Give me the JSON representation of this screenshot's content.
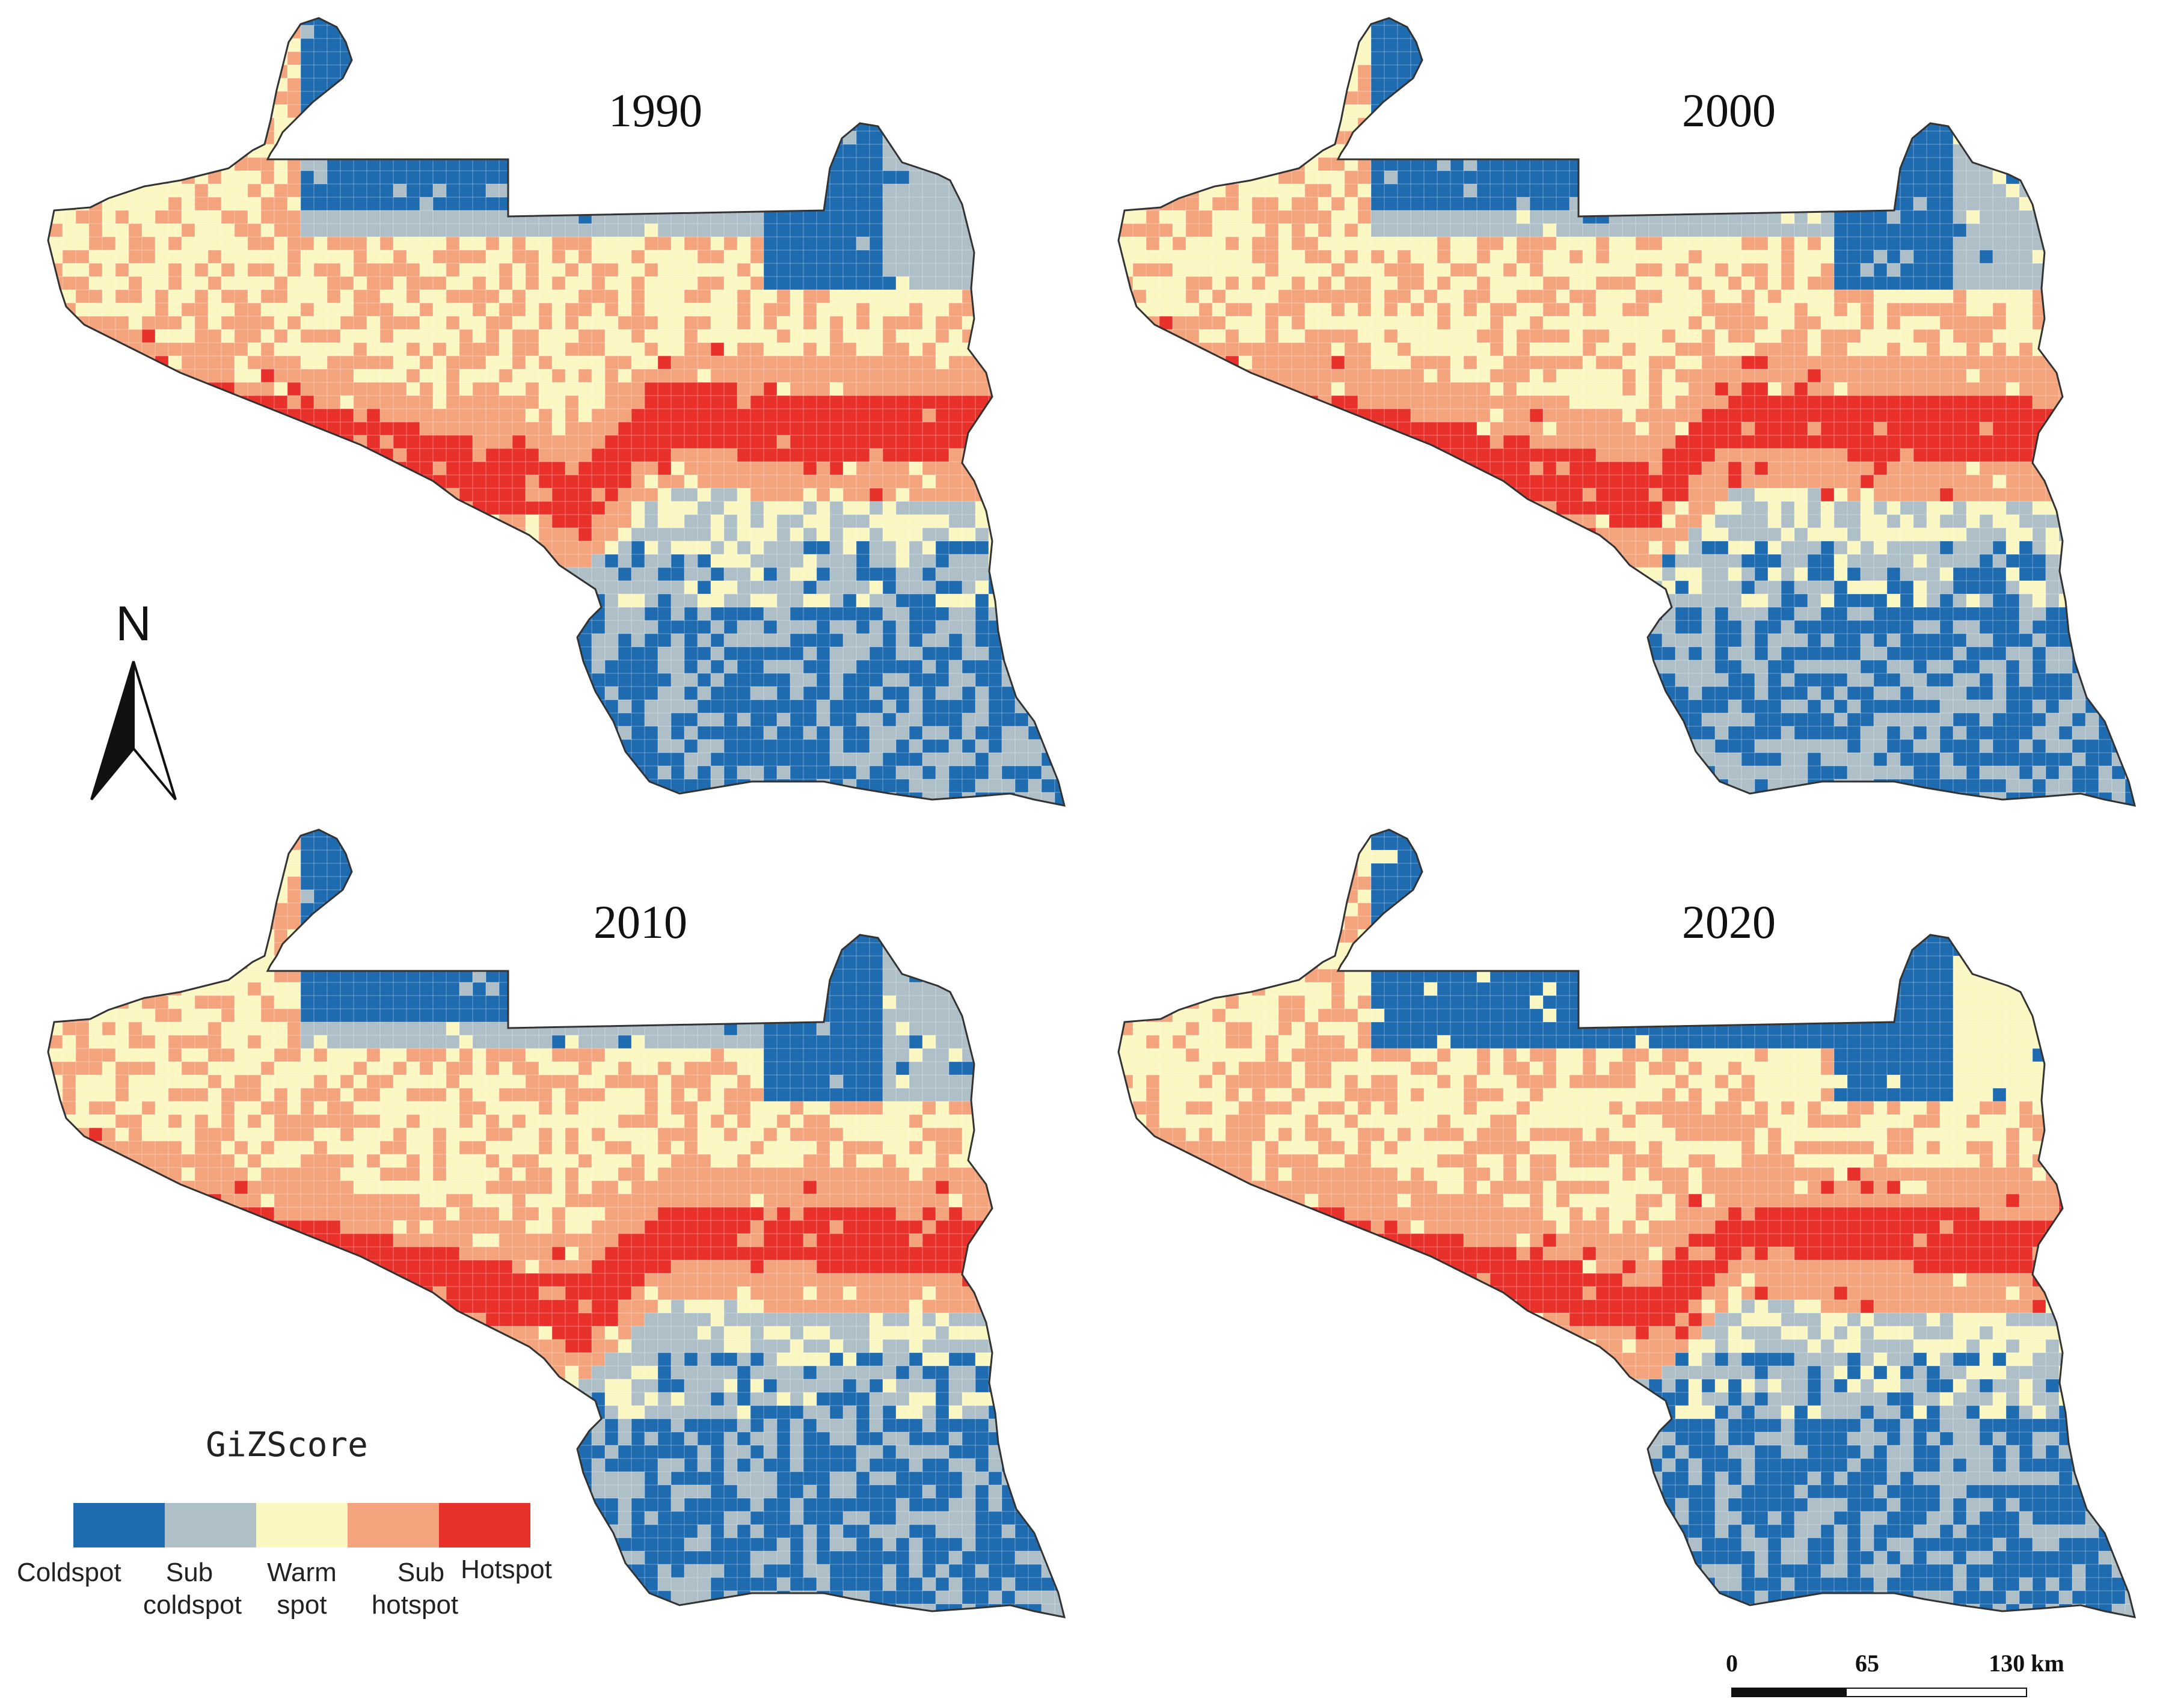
{
  "panels": [
    {
      "year": "1990"
    },
    {
      "year": "2000"
    },
    {
      "year": "2010"
    },
    {
      "year": "2020"
    }
  ],
  "legend": {
    "title": "GiZScore",
    "classes": [
      {
        "id": "coldspot",
        "lines": [
          "Coldspot"
        ],
        "color": "#1f6bb0"
      },
      {
        "id": "sub-coldspot",
        "lines": [
          "Sub",
          "coldspot"
        ],
        "color": "#aebfc8"
      },
      {
        "id": "warm-spot",
        "lines": [
          "Warm",
          "spot"
        ],
        "color": "#fbf7c2"
      },
      {
        "id": "sub-hotspot",
        "lines": [
          "Sub",
          "hotspot"
        ],
        "color": "#f4a47d"
      },
      {
        "id": "hotspot",
        "lines": [
          "Hotspot"
        ],
        "color": "#e8312a"
      }
    ]
  },
  "north_arrow": {
    "letter": "N"
  },
  "scale_bar": {
    "ticks": [
      "0",
      "65",
      "130 km"
    ]
  }
}
